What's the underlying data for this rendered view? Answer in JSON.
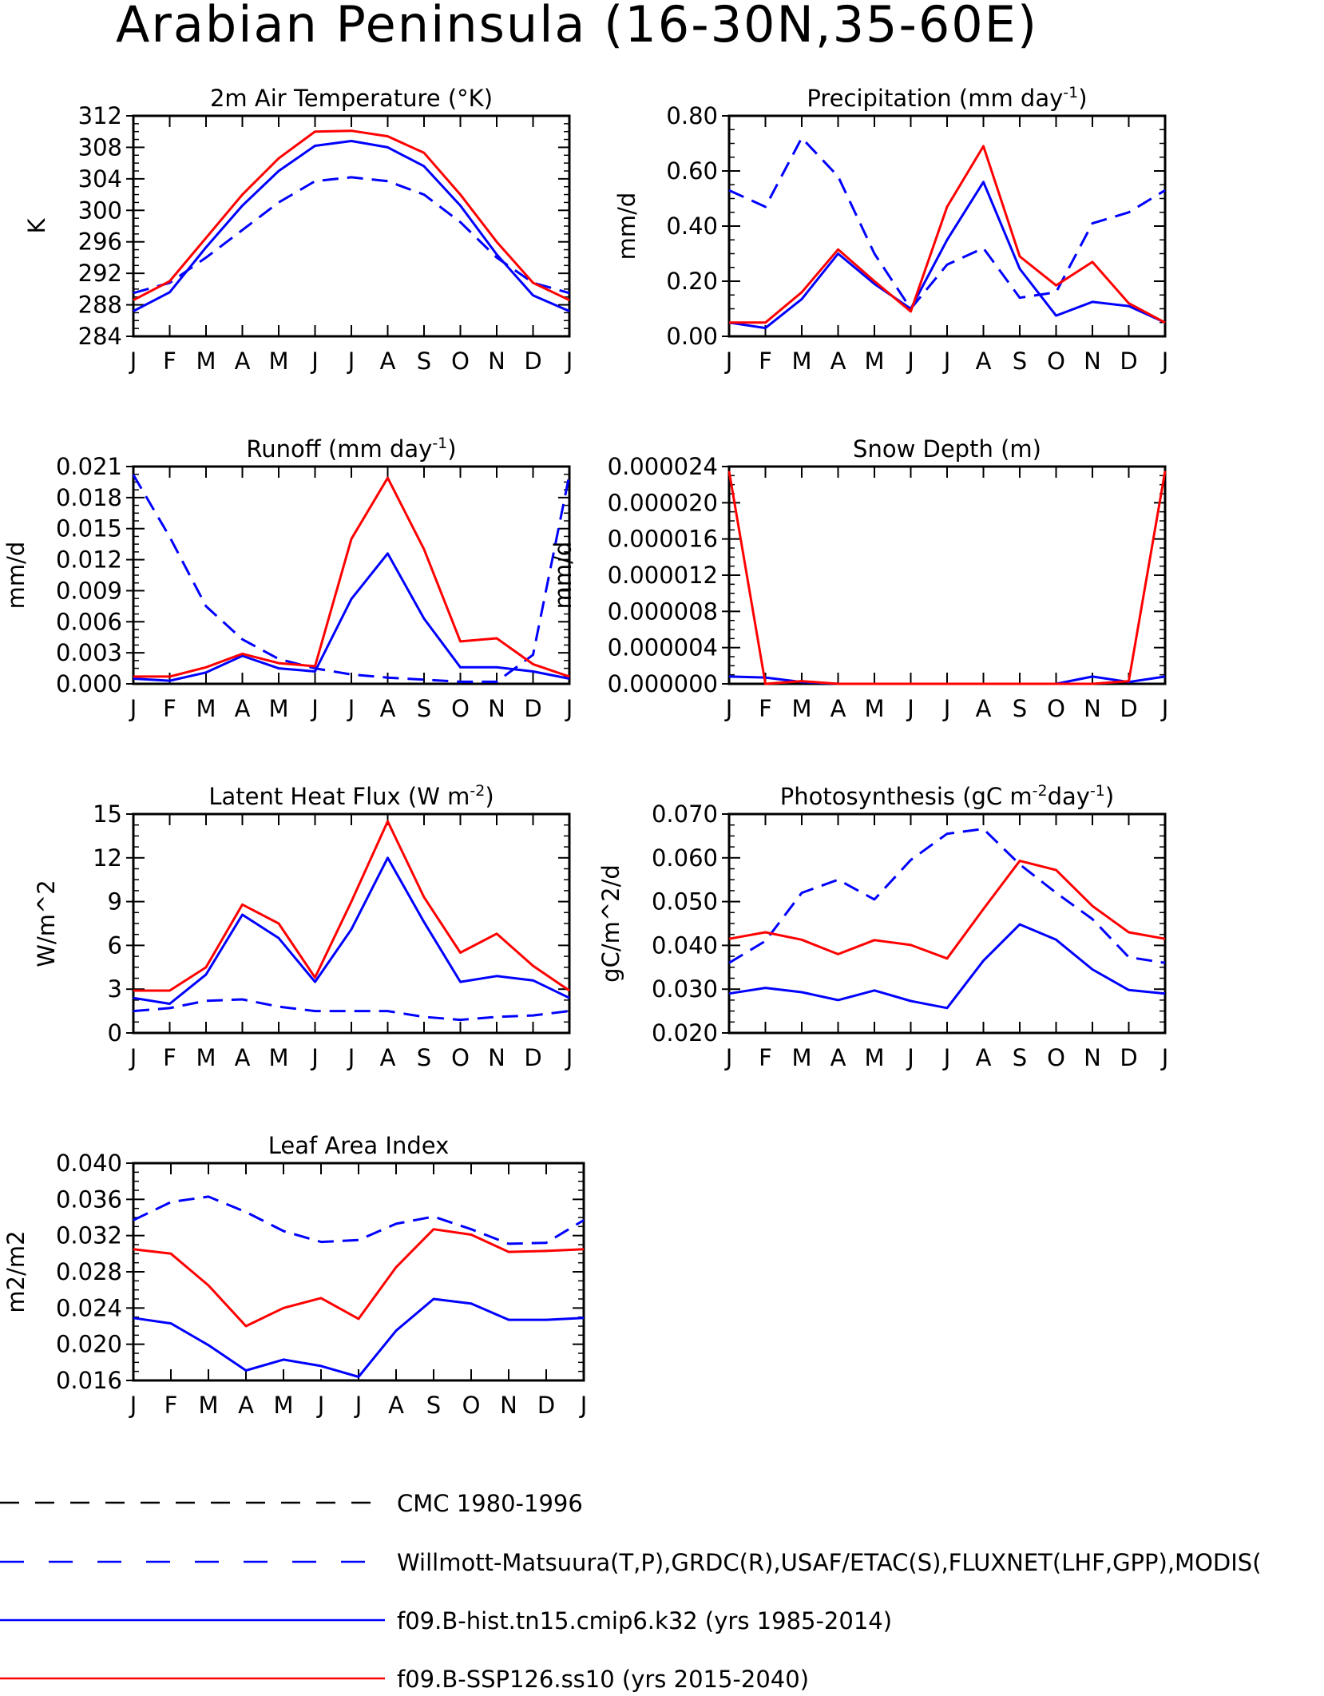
{
  "title": "Arabian Peninsula (16-30N,35-60E)",
  "months": [
    "J",
    "F",
    "M",
    "A",
    "M",
    "J",
    "J",
    "A",
    "S",
    "O",
    "N",
    "D",
    "J"
  ],
  "colors": {
    "observed": "#0000ff",
    "hist": "#0000ff",
    "ssp": "#ff0000",
    "cmc": "#000000",
    "axis": "#000000"
  },
  "legend": [
    {
      "label": "CMC 1980-1996",
      "color": "#000000",
      "style": "dashed"
    },
    {
      "label": "Willmott-Matsuura(T,P),GRDC(R),USAF/ETAC(S),FLUXNET(LHF,GPP),MODIS(",
      "color": "#0000ff",
      "style": "dashed"
    },
    {
      "label": "f09.B-hist.tn15.cmip6.k32 (yrs 1985-2014)",
      "color": "#0000ff",
      "style": "solid"
    },
    {
      "label": "f09.B-SSP126.ss10 (yrs 2015-2040)",
      "color": "#ff0000",
      "style": "solid"
    }
  ],
  "chart_data": [
    {
      "type": "line",
      "title": "2m Air Temperature (°K)",
      "ylabel": "K",
      "ylim": [
        284,
        312
      ],
      "yticks": [
        "284",
        "288",
        "292",
        "296",
        "300",
        "304",
        "308",
        "312"
      ],
      "series": [
        {
          "style": "obs",
          "values": [
            289.5,
            290.8,
            294.0,
            297.5,
            301.0,
            303.7,
            304.2,
            303.7,
            302.0,
            298.5,
            294.0,
            290.8,
            289.5
          ]
        },
        {
          "style": "hist",
          "values": [
            287.2,
            289.6,
            295.3,
            300.6,
            305.0,
            308.2,
            308.8,
            308.0,
            305.6,
            300.6,
            294.4,
            289.2,
            287.2
          ]
        },
        {
          "style": "ssp",
          "values": [
            288.6,
            291.0,
            296.5,
            302.0,
            306.6,
            310.0,
            310.1,
            309.4,
            307.3,
            302.0,
            296.0,
            290.8,
            288.6
          ]
        }
      ]
    },
    {
      "type": "line",
      "title": "Precipitation (mm day",
      "title_sup": "-1",
      "title_end": ")",
      "ylabel": "mm/d",
      "ylim": [
        0,
        0.8
      ],
      "yticks": [
        "0.00",
        "0.20",
        "0.40",
        "0.60",
        "0.80"
      ],
      "series": [
        {
          "style": "obs",
          "values": [
            0.53,
            0.47,
            0.72,
            0.58,
            0.3,
            0.1,
            0.26,
            0.32,
            0.14,
            0.16,
            0.41,
            0.45,
            0.53
          ]
        },
        {
          "style": "hist",
          "values": [
            0.05,
            0.03,
            0.135,
            0.3,
            0.19,
            0.1,
            0.35,
            0.56,
            0.245,
            0.075,
            0.125,
            0.11,
            0.05
          ]
        },
        {
          "style": "ssp",
          "values": [
            0.05,
            0.05,
            0.16,
            0.315,
            0.2,
            0.09,
            0.47,
            0.69,
            0.29,
            0.185,
            0.27,
            0.12,
            0.05
          ]
        }
      ]
    },
    {
      "type": "line",
      "title": "Runoff (mm day",
      "title_sup": "-1",
      "title_end": ")",
      "ylabel": "mm/d",
      "ylim": [
        0,
        0.021
      ],
      "yticks": [
        "0.000",
        "0.003",
        "0.006",
        "0.009",
        "0.012",
        "0.015",
        "0.018",
        "0.021"
      ],
      "series": [
        {
          "style": "obs",
          "values": [
            0.0202,
            0.0142,
            0.0075,
            0.0043,
            0.0024,
            0.0015,
            0.0009,
            0.0006,
            0.0004,
            0.0002,
            0.0002,
            0.0028,
            0.0202
          ]
        },
        {
          "style": "hist",
          "values": [
            0.0005,
            0.0003,
            0.0011,
            0.0027,
            0.0015,
            0.0012,
            0.0082,
            0.0126,
            0.0063,
            0.0016,
            0.0016,
            0.0012,
            0.0005
          ]
        },
        {
          "style": "ssp",
          "values": [
            0.0007,
            0.0007,
            0.0016,
            0.0029,
            0.002,
            0.0017,
            0.014,
            0.0199,
            0.013,
            0.0041,
            0.0044,
            0.0019,
            0.0007
          ]
        }
      ]
    },
    {
      "type": "line",
      "title": "Snow Depth (m)",
      "ylabel": "mm/d",
      "ylim": [
        0,
        2.4e-05
      ],
      "yticks": [
        "0.000000",
        "0.000004",
        "0.000008",
        "0.000012",
        "0.000016",
        "0.000020",
        "0.000024"
      ],
      "series": [
        {
          "style": "hist",
          "values": [
            8e-07,
            7e-07,
            2e-07,
            0.0,
            0.0,
            0.0,
            0.0,
            0.0,
            0.0,
            0.0,
            8e-07,
            2e-07,
            8e-07
          ]
        },
        {
          "style": "ssp",
          "values": [
            2.35e-05,
            0.0,
            3e-07,
            0.0,
            0.0,
            0.0,
            0.0,
            0.0,
            0.0,
            0.0,
            0.0,
            3e-07,
            2.35e-05
          ]
        }
      ]
    },
    {
      "type": "line",
      "title": "Latent Heat Flux (W m",
      "title_sup": "-2",
      "title_end": ")",
      "ylabel": "W/m^2",
      "ylim": [
        0,
        15
      ],
      "yticks": [
        "0",
        "3",
        "6",
        "9",
        "12",
        "15"
      ],
      "series": [
        {
          "style": "obs",
          "values": [
            1.5,
            1.7,
            2.2,
            2.3,
            1.8,
            1.5,
            1.5,
            1.5,
            1.1,
            0.9,
            1.1,
            1.2,
            1.5
          ]
        },
        {
          "style": "hist",
          "values": [
            2.4,
            2.0,
            4.0,
            8.1,
            6.5,
            3.5,
            7.1,
            12.0,
            7.6,
            3.5,
            3.9,
            3.6,
            2.4
          ]
        },
        {
          "style": "ssp",
          "values": [
            2.9,
            2.9,
            4.5,
            8.8,
            7.5,
            3.8,
            9.0,
            14.5,
            9.3,
            5.5,
            6.8,
            4.6,
            2.9
          ]
        }
      ]
    },
    {
      "type": "line",
      "title": "Photosynthesis (gC m",
      "title_sup": "-2",
      "title_mid": "day",
      "title_sup2": "-1",
      "title_end": ")",
      "ylabel": "gC/m^2/d",
      "ylim": [
        0.02,
        0.07
      ],
      "yticks": [
        "0.020",
        "0.030",
        "0.040",
        "0.050",
        "0.060",
        "0.070"
      ],
      "series": [
        {
          "style": "obs",
          "values": [
            0.036,
            0.041,
            0.052,
            0.055,
            0.0505,
            0.0595,
            0.0655,
            0.0666,
            0.0585,
            0.052,
            0.046,
            0.0373,
            0.036
          ]
        },
        {
          "style": "hist",
          "values": [
            0.029,
            0.0303,
            0.0293,
            0.0275,
            0.0297,
            0.0273,
            0.0257,
            0.0365,
            0.0448,
            0.0413,
            0.0345,
            0.0298,
            0.029
          ]
        },
        {
          "style": "ssp",
          "values": [
            0.0415,
            0.043,
            0.0413,
            0.038,
            0.0412,
            0.0401,
            0.037,
            0.0483,
            0.0593,
            0.0572,
            0.049,
            0.043,
            0.0415
          ]
        }
      ]
    },
    {
      "type": "line",
      "title": "Leaf Area Index",
      "ylabel": "m2/m2",
      "ylim": [
        0.016,
        0.04
      ],
      "yticks": [
        "0.016",
        "0.020",
        "0.024",
        "0.028",
        "0.032",
        "0.036",
        "0.040"
      ],
      "series": [
        {
          "style": "obs",
          "values": [
            0.0337,
            0.0357,
            0.0363,
            0.0346,
            0.0325,
            0.0313,
            0.0315,
            0.0333,
            0.0341,
            0.0327,
            0.0311,
            0.0312,
            0.0337
          ]
        },
        {
          "style": "hist",
          "values": [
            0.0229,
            0.0223,
            0.0199,
            0.0171,
            0.0183,
            0.0176,
            0.0164,
            0.0215,
            0.025,
            0.0245,
            0.0227,
            0.0227,
            0.0229
          ]
        },
        {
          "style": "ssp",
          "values": [
            0.0305,
            0.03,
            0.0265,
            0.022,
            0.024,
            0.0251,
            0.0228,
            0.0285,
            0.0327,
            0.0321,
            0.0302,
            0.0303,
            0.0305
          ]
        }
      ]
    }
  ]
}
